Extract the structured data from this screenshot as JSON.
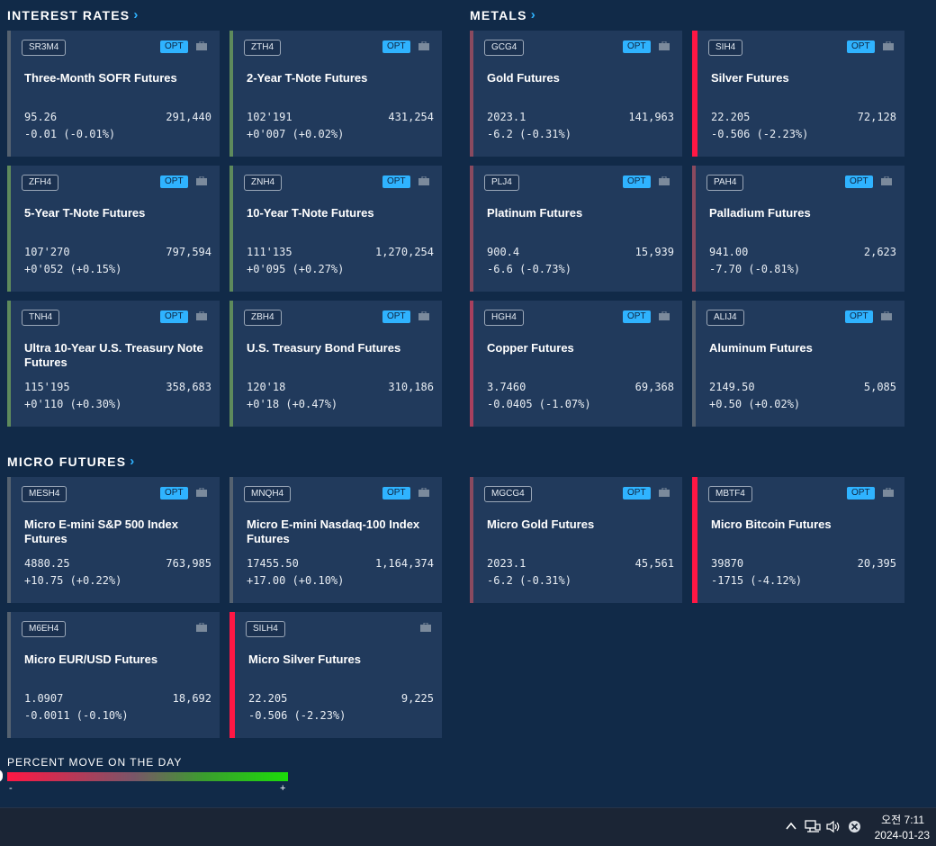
{
  "sections": {
    "interest_rates": "INTEREST RATES",
    "metals": "METALS",
    "micro_futures": "MICRO FUTURES"
  },
  "chevron": "›",
  "badge_opt": "OPT",
  "cards": {
    "sr3m4": {
      "code": "SR3M4",
      "name": "Three-Month SOFR Futures",
      "price": "95.26",
      "volume": "291,440",
      "change": "-0.01 (-0.01%)"
    },
    "zth4": {
      "code": "ZTH4",
      "name": "2-Year T-Note Futures",
      "price": "102'191",
      "volume": "431,254",
      "change": "+0'007 (+0.02%)"
    },
    "zfh4": {
      "code": "ZFH4",
      "name": "5-Year T-Note Futures",
      "price": "107'270",
      "volume": "797,594",
      "change": "+0'052 (+0.15%)"
    },
    "znh4": {
      "code": "ZNH4",
      "name": "10-Year T-Note Futures",
      "price": "111'135",
      "volume": "1,270,254",
      "change": "+0'095 (+0.27%)"
    },
    "tnh4": {
      "code": "TNH4",
      "name": "Ultra 10-Year U.S. Treasury Note Futures",
      "price": "115'195",
      "volume": "358,683",
      "change": "+0'110 (+0.30%)"
    },
    "zbh4": {
      "code": "ZBH4",
      "name": "U.S. Treasury Bond Futures",
      "price": "120'18",
      "volume": "310,186",
      "change": "+0'18 (+0.47%)"
    },
    "gcg4": {
      "code": "GCG4",
      "name": "Gold Futures",
      "price": "2023.1",
      "volume": "141,963",
      "change": "-6.2 (-0.31%)"
    },
    "sih4": {
      "code": "SIH4",
      "name": "Silver Futures",
      "price": "22.205",
      "volume": "72,128",
      "change": "-0.506 (-2.23%)"
    },
    "plj4": {
      "code": "PLJ4",
      "name": "Platinum Futures",
      "price": "900.4",
      "volume": "15,939",
      "change": "-6.6 (-0.73%)"
    },
    "pah4": {
      "code": "PAH4",
      "name": "Palladium Futures",
      "price": "941.00",
      "volume": "2,623",
      "change": "-7.70 (-0.81%)"
    },
    "hgh4": {
      "code": "HGH4",
      "name": "Copper Futures",
      "price": "3.7460",
      "volume": "69,368",
      "change": "-0.0405 (-1.07%)"
    },
    "alij4": {
      "code": "ALIJ4",
      "name": "Aluminum Futures",
      "price": "2149.50",
      "volume": "5,085",
      "change": "+0.50 (+0.02%)"
    },
    "mesh4": {
      "code": "MESH4",
      "name": "Micro E-mini S&P 500 Index Futures",
      "price": "4880.25",
      "volume": "763,985",
      "change": "+10.75 (+0.22%)"
    },
    "mnqh4": {
      "code": "MNQH4",
      "name": "Micro E-mini Nasdaq-100 Index Futures",
      "price": "17455.50",
      "volume": "1,164,374",
      "change": "+17.00 (+0.10%)"
    },
    "mgcg4": {
      "code": "MGCG4",
      "name": "Micro Gold Futures",
      "price": "2023.1",
      "volume": "45,561",
      "change": "-6.2 (-0.31%)"
    },
    "mbtf4": {
      "code": "MBTF4",
      "name": "Micro Bitcoin Futures",
      "price": "39870",
      "volume": "20,395",
      "change": "-1715 (-4.12%)"
    },
    "m6eh4": {
      "code": "M6EH4",
      "name": "Micro EUR/USD Futures",
      "price": "1.0907",
      "volume": "18,692",
      "change": "-0.0011 (-0.10%)"
    },
    "silh4": {
      "code": "SILH4",
      "name": "Micro Silver Futures",
      "price": "22.205",
      "volume": "9,225",
      "change": "-0.506 (-2.23%)"
    }
  },
  "colors": {
    "green_dim": "#5e8a5c",
    "grey": "#556270",
    "red_dim": "#8a4a5f",
    "red_bright": "#ff1744",
    "opt": "#2fb3ff",
    "background": "#112a48",
    "card": "#213a5c"
  },
  "legend": {
    "title": "PERCENT MOVE ON THE DAY",
    "minus": "-",
    "plus": "+"
  },
  "taskbar": {
    "time": "오전 7:11",
    "date": "2024-01-23",
    "icons": [
      "chevron-up-icon",
      "network-icon",
      "volume-icon",
      "close-circle-icon"
    ]
  }
}
